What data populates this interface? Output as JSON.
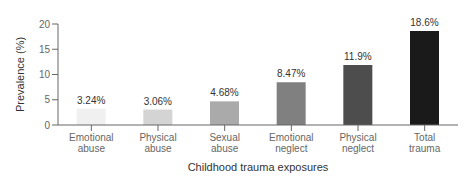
{
  "chart_data": {
    "type": "bar",
    "xlabel": "Childhood trauma exposures",
    "ylabel": "Prevalence (%)",
    "categories": [
      "Emotional abuse",
      "Physical abuse",
      "Sexual abuse",
      "Emotional neglect",
      "Physical neglect",
      "Total trauma"
    ],
    "values": [
      3.24,
      3.06,
      4.68,
      8.47,
      11.9,
      18.6
    ],
    "value_labels": [
      "3.24%",
      "3.06%",
      "4.68%",
      "8.47%",
      "11.9%",
      "18.6%"
    ],
    "colors": [
      "#f0f0f0",
      "#d4d4d4",
      "#aaaaaa",
      "#808080",
      "#4d4d4d",
      "#1a1a1a"
    ],
    "ylim": [
      0,
      20
    ],
    "yticks": [
      0,
      5,
      10,
      15,
      20
    ],
    "grid": false
  }
}
